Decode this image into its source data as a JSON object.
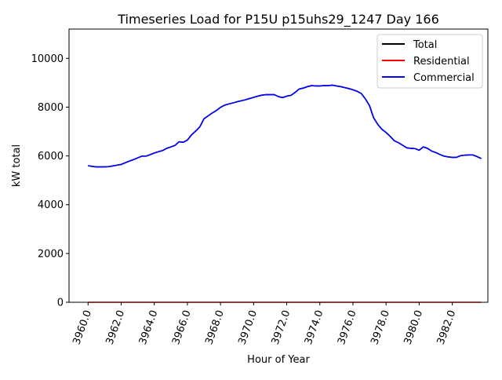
{
  "chart_data": {
    "type": "line",
    "title": "Timeseries Load for P15U p15uhs29_1247  Day 166",
    "xlabel": "Hour of Year",
    "ylabel": "kW total",
    "xlim": [
      3958.85,
      3984.15
    ],
    "ylim": [
      0,
      11200
    ],
    "xticks": [
      3960,
      3962,
      3964,
      3966,
      3968,
      3970,
      3972,
      3974,
      3976,
      3978,
      3980,
      3982
    ],
    "xtick_labels": [
      "3960.0",
      "3962.0",
      "3964.0",
      "3966.0",
      "3968.0",
      "3970.0",
      "3972.0",
      "3974.0",
      "3976.0",
      "3978.0",
      "3980.0",
      "3982.0"
    ],
    "yticks": [
      0,
      2000,
      4000,
      6000,
      8000,
      10000
    ],
    "ytick_labels": [
      "0",
      "2000",
      "4000",
      "6000",
      "8000",
      "10000"
    ],
    "legend_position": "top-right",
    "x": [
      3960.0,
      3960.25,
      3960.5,
      3960.75,
      3961.0,
      3961.25,
      3961.5,
      3961.75,
      3962.0,
      3962.25,
      3962.5,
      3962.75,
      3963.0,
      3963.25,
      3963.5,
      3963.75,
      3964.0,
      3964.25,
      3964.5,
      3964.75,
      3965.0,
      3965.25,
      3965.5,
      3965.75,
      3966.0,
      3966.25,
      3966.5,
      3966.75,
      3967.0,
      3967.25,
      3967.5,
      3967.75,
      3968.0,
      3968.25,
      3968.5,
      3968.75,
      3969.0,
      3969.25,
      3969.5,
      3969.75,
      3970.0,
      3970.25,
      3970.5,
      3970.75,
      3971.0,
      3971.25,
      3971.5,
      3971.75,
      3972.0,
      3972.25,
      3972.5,
      3972.75,
      3973.0,
      3973.25,
      3973.5,
      3973.75,
      3974.0,
      3974.25,
      3974.5,
      3974.75,
      3975.0,
      3975.25,
      3975.5,
      3975.75,
      3976.0,
      3976.25,
      3976.5,
      3976.75,
      3977.0,
      3977.25,
      3977.5,
      3977.75,
      3978.0,
      3978.25,
      3978.5,
      3978.75,
      3979.0,
      3979.25,
      3979.5,
      3979.75,
      3980.0,
      3980.25,
      3980.5,
      3980.75,
      3981.0,
      3981.25,
      3981.5,
      3981.75,
      3982.0,
      3982.25,
      3982.5,
      3982.75,
      3983.0,
      3983.25,
      3983.5,
      3983.75
    ],
    "series": [
      {
        "name": "Total",
        "color": "#000000",
        "values": [
          5600,
          5570,
          5550,
          5550,
          5550,
          5560,
          5590,
          5620,
          5650,
          5720,
          5790,
          5850,
          5920,
          5990,
          5990,
          6050,
          6120,
          6170,
          6220,
          6310,
          6370,
          6430,
          6580,
          6560,
          6650,
          6860,
          7020,
          7190,
          7520,
          7640,
          7760,
          7860,
          7990,
          8080,
          8130,
          8170,
          8220,
          8260,
          8300,
          8350,
          8400,
          8450,
          8490,
          8510,
          8510,
          8510,
          8430,
          8390,
          8450,
          8480,
          8600,
          8740,
          8780,
          8840,
          8880,
          8870,
          8870,
          8880,
          8880,
          8900,
          8870,
          8840,
          8800,
          8760,
          8710,
          8650,
          8560,
          8340,
          8060,
          7560,
          7290,
          7090,
          6960,
          6800,
          6620,
          6540,
          6440,
          6330,
          6310,
          6300,
          6230,
          6370,
          6310,
          6200,
          6140,
          6060,
          5990,
          5960,
          5940,
          5940,
          6010,
          6030,
          6040,
          6040,
          5970,
          5890
        ]
      },
      {
        "name": "Residential",
        "color": "#ff0000",
        "values": [
          0,
          0,
          0,
          0,
          0,
          0,
          0,
          0,
          0,
          0,
          0,
          0,
          0,
          0,
          0,
          0,
          0,
          0,
          0,
          0,
          0,
          0,
          0,
          0,
          0,
          0,
          0,
          0,
          0,
          0,
          0,
          0,
          0,
          0,
          0,
          0,
          0,
          0,
          0,
          0,
          0,
          0,
          0,
          0,
          0,
          0,
          0,
          0,
          0,
          0,
          0,
          0,
          0,
          0,
          0,
          0,
          0,
          0,
          0,
          0,
          0,
          0,
          0,
          0,
          0,
          0,
          0,
          0,
          0,
          0,
          0,
          0,
          0,
          0,
          0,
          0,
          0,
          0,
          0,
          0,
          0,
          0,
          0,
          0,
          0,
          0,
          0,
          0,
          0,
          0,
          0,
          0,
          0,
          0,
          0,
          0
        ]
      },
      {
        "name": "Commercial",
        "color": "#0000ff",
        "values": [
          5600,
          5570,
          5550,
          5550,
          5550,
          5560,
          5590,
          5620,
          5650,
          5720,
          5790,
          5850,
          5920,
          5990,
          5990,
          6050,
          6120,
          6170,
          6220,
          6310,
          6370,
          6430,
          6580,
          6560,
          6650,
          6860,
          7020,
          7190,
          7520,
          7640,
          7760,
          7860,
          7990,
          8080,
          8130,
          8170,
          8220,
          8260,
          8300,
          8350,
          8400,
          8450,
          8490,
          8510,
          8510,
          8510,
          8430,
          8390,
          8450,
          8480,
          8600,
          8740,
          8780,
          8840,
          8880,
          8870,
          8870,
          8880,
          8880,
          8900,
          8870,
          8840,
          8800,
          8760,
          8710,
          8650,
          8560,
          8340,
          8060,
          7560,
          7290,
          7090,
          6960,
          6800,
          6620,
          6540,
          6440,
          6330,
          6310,
          6300,
          6230,
          6370,
          6310,
          6200,
          6140,
          6060,
          5990,
          5960,
          5940,
          5940,
          6010,
          6030,
          6040,
          6040,
          5970,
          5890
        ]
      }
    ]
  }
}
